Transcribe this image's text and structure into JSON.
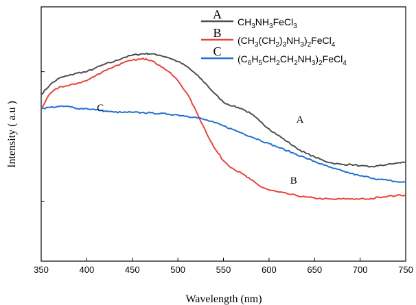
{
  "chart_data": {
    "type": "line",
    "title": "",
    "xlabel": "Wavelength (nm)",
    "ylabel": "Intensity ( a.u )",
    "xlim": [
      350,
      750
    ],
    "ylim": [
      0,
      1
    ],
    "x_ticks": [
      "350",
      "400",
      "450",
      "500",
      "550",
      "600",
      "650",
      "700",
      "750"
    ],
    "y_ticks_labeled": false,
    "grid": false,
    "legend_position": "top-right",
    "legend": [
      {
        "letter": "A",
        "formula": [
          [
            "CH",
            ""
          ],
          [
            "3",
            "sub"
          ],
          [
            "NH",
            ""
          ],
          [
            "3",
            "sub"
          ],
          [
            "FeCl",
            ""
          ],
          [
            "3",
            "sub"
          ]
        ]
      },
      {
        "letter": "B",
        "formula": [
          [
            "(CH",
            ""
          ],
          [
            "3",
            "sub"
          ],
          [
            "(CH",
            ""
          ],
          [
            "2",
            "sub"
          ],
          [
            ")",
            ""
          ],
          [
            "3",
            "sub"
          ],
          [
            "NH",
            ""
          ],
          [
            "3",
            "sub"
          ],
          [
            ")",
            ""
          ],
          [
            "2",
            "sub"
          ],
          [
            "FeCl",
            ""
          ],
          [
            "4",
            "sub"
          ]
        ]
      },
      {
        "letter": "C",
        "formula": [
          [
            "(C",
            ""
          ],
          [
            "6",
            "sub"
          ],
          [
            "H",
            ""
          ],
          [
            "5",
            "sub"
          ],
          [
            "CH",
            ""
          ],
          [
            "2",
            "sub"
          ],
          [
            "CH",
            ""
          ],
          [
            "2",
            "sub"
          ],
          [
            "NH",
            ""
          ],
          [
            "3",
            "sub"
          ],
          [
            ")",
            ""
          ],
          [
            "2",
            "sub"
          ],
          [
            "FeCl",
            ""
          ],
          [
            "4",
            "sub"
          ]
        ]
      }
    ],
    "series": [
      {
        "label": "A",
        "color": "#4d4d4d",
        "x": [
          350,
          360,
          370,
          380,
          390,
          400,
          410,
          420,
          430,
          440,
          450,
          460,
          465,
          470,
          480,
          490,
          500,
          510,
          520,
          530,
          540,
          550,
          560,
          570,
          580,
          590,
          600,
          610,
          620,
          630,
          640,
          650,
          660,
          670,
          680,
          690,
          700,
          710,
          720,
          730,
          740,
          750
        ],
        "y": [
          0.655,
          0.695,
          0.72,
          0.73,
          0.74,
          0.745,
          0.76,
          0.775,
          0.785,
          0.8,
          0.81,
          0.815,
          0.816,
          0.815,
          0.81,
          0.8,
          0.785,
          0.765,
          0.735,
          0.7,
          0.66,
          0.625,
          0.61,
          0.6,
          0.58,
          0.55,
          0.52,
          0.495,
          0.47,
          0.445,
          0.425,
          0.41,
          0.395,
          0.385,
          0.38,
          0.38,
          0.375,
          0.37,
          0.375,
          0.38,
          0.385,
          0.39
        ]
      },
      {
        "label": "B",
        "color": "#e8413c",
        "x": [
          350,
          360,
          370,
          380,
          390,
          400,
          410,
          420,
          430,
          440,
          450,
          460,
          465,
          470,
          480,
          490,
          500,
          510,
          520,
          530,
          540,
          550,
          560,
          570,
          580,
          590,
          600,
          610,
          620,
          630,
          640,
          650,
          660,
          670,
          680,
          690,
          700,
          710,
          720,
          730,
          740,
          750
        ],
        "y": [
          0.6,
          0.66,
          0.685,
          0.69,
          0.7,
          0.71,
          0.73,
          0.75,
          0.765,
          0.78,
          0.79,
          0.795,
          0.796,
          0.79,
          0.77,
          0.745,
          0.71,
          0.66,
          0.59,
          0.515,
          0.445,
          0.395,
          0.365,
          0.345,
          0.32,
          0.295,
          0.28,
          0.272,
          0.265,
          0.258,
          0.252,
          0.248,
          0.245,
          0.243,
          0.245,
          0.245,
          0.245,
          0.243,
          0.252,
          0.255,
          0.258,
          0.26
        ]
      },
      {
        "label": "C",
        "color": "#1f6fd1",
        "x": [
          350,
          360,
          370,
          380,
          390,
          400,
          410,
          420,
          430,
          440,
          450,
          460,
          470,
          480,
          490,
          500,
          510,
          520,
          530,
          540,
          550,
          560,
          570,
          580,
          590,
          600,
          610,
          620,
          630,
          640,
          650,
          660,
          670,
          680,
          690,
          700,
          710,
          720,
          730,
          740,
          750
        ],
        "y": [
          0.6,
          0.605,
          0.608,
          0.608,
          0.6,
          0.6,
          0.595,
          0.59,
          0.586,
          0.585,
          0.585,
          0.584,
          0.583,
          0.58,
          0.578,
          0.575,
          0.57,
          0.565,
          0.556,
          0.545,
          0.532,
          0.518,
          0.504,
          0.49,
          0.476,
          0.462,
          0.448,
          0.434,
          0.42,
          0.406,
          0.392,
          0.378,
          0.365,
          0.355,
          0.345,
          0.335,
          0.33,
          0.322,
          0.318,
          0.312,
          0.31
        ]
      }
    ],
    "annotations": [
      {
        "text": "A",
        "x": 634,
        "y": 0.545
      },
      {
        "text": "B",
        "x": 627,
        "y": 0.305
      },
      {
        "text": "C",
        "x": 415,
        "y": 0.59
      }
    ]
  }
}
